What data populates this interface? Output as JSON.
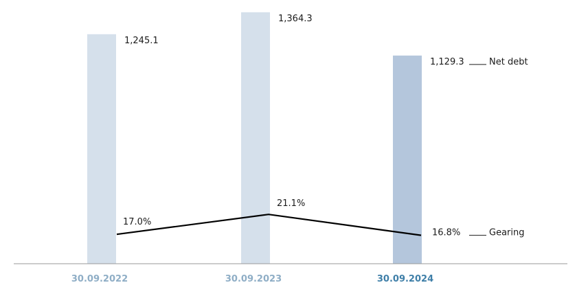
{
  "chart_data": {
    "type": "bar",
    "categories": [
      "30.09.2022",
      "30.09.2023",
      "30.09.2024"
    ],
    "series": [
      {
        "name": "Net debt",
        "type": "bar",
        "values": [
          1245.1,
          1364.3,
          1129.3
        ],
        "labels": [
          "1,245.1",
          "1,364.3",
          "1,129.3"
        ]
      },
      {
        "name": "Gearing",
        "type": "line",
        "values": [
          17.0,
          21.1,
          16.8
        ],
        "labels": [
          "17.0%",
          "21.1%",
          "16.8%"
        ]
      }
    ],
    "legend_position": "right",
    "grid": false,
    "colors": {
      "bar_past": "#d5e0eb",
      "bar_current": "#b4c6dc",
      "line": "#000000",
      "tick_past": "#8faec6",
      "tick_current": "#3f7fa8",
      "axis": "#999999"
    }
  }
}
